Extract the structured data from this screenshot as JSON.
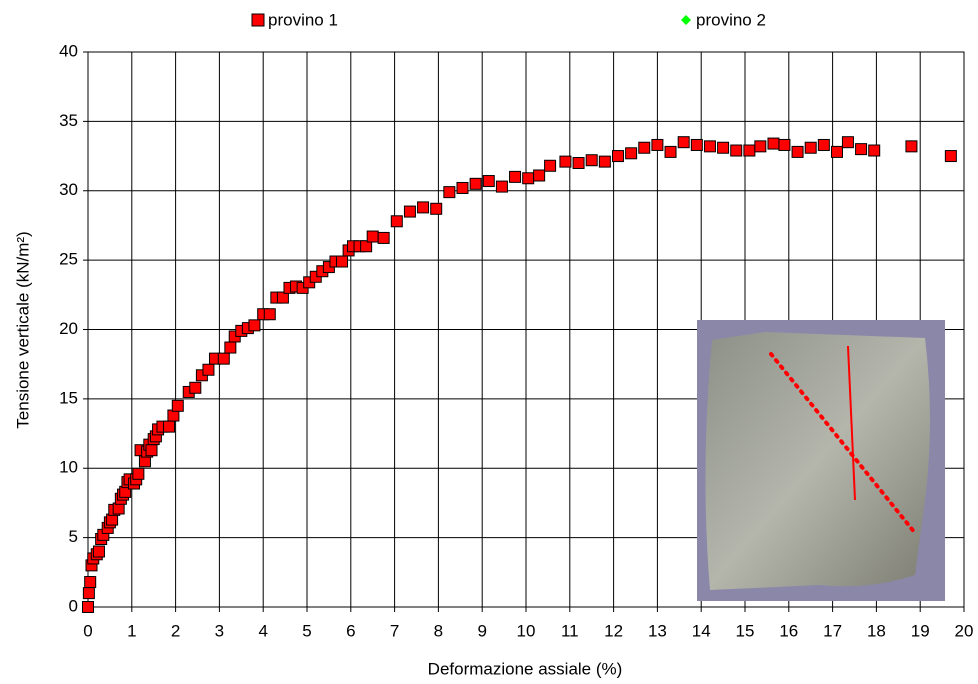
{
  "chart_data": {
    "type": "scatter",
    "xlabel": "Deformazione assiale (%)",
    "ylabel": "Tensione verticale (kN/m²)",
    "xlim": [
      0,
      20
    ],
    "xticks": [
      0,
      1,
      2,
      3,
      4,
      5,
      6,
      7,
      8,
      9,
      10,
      11,
      12,
      13,
      14,
      15,
      16,
      17,
      18,
      19,
      20
    ],
    "ylim": [
      0,
      40
    ],
    "yticks": [
      0,
      5,
      10,
      15,
      20,
      25,
      30,
      35,
      40
    ],
    "grid": true,
    "legend": "top",
    "series": [
      {
        "name": "provino 1",
        "color": "#ff0000",
        "marker": "square",
        "x": [
          0,
          0.02,
          0.05,
          0.08,
          0.12,
          0.2,
          0.25,
          0.3,
          0.35,
          0.45,
          0.5,
          0.55,
          0.6,
          0.7,
          0.75,
          0.8,
          0.85,
          0.9,
          0.95,
          1.05,
          1.1,
          1.15,
          1.2,
          1.3,
          1.35,
          1.4,
          1.45,
          1.5,
          1.55,
          1.6,
          1.7,
          1.85,
          1.95,
          2.05,
          2.3,
          2.45,
          2.6,
          2.75,
          2.9,
          3.1,
          3.25,
          3.35,
          3.5,
          3.65,
          3.8,
          4.0,
          4.15,
          4.3,
          4.45,
          4.6,
          4.75,
          4.9,
          5.05,
          5.2,
          5.35,
          5.5,
          5.65,
          5.8,
          5.95,
          6.05,
          6.2,
          6.35,
          6.5,
          6.75,
          7.05,
          7.35,
          7.65,
          7.95,
          8.25,
          8.55,
          8.85,
          9.15,
          9.45,
          9.75,
          10.05,
          10.3,
          10.55,
          10.9,
          11.2,
          11.5,
          11.8,
          12.1,
          12.4,
          12.7,
          13.0,
          13.3,
          13.6,
          13.9,
          14.2,
          14.5,
          14.8,
          15.1,
          15.35,
          15.65,
          15.9,
          16.2,
          16.5,
          16.8,
          17.1,
          17.35,
          17.65,
          17.95,
          18.8,
          19.7
        ],
        "values": [
          0,
          1,
          1.8,
          3,
          3.5,
          3.8,
          4,
          4.9,
          5.2,
          5.7,
          6.1,
          6.3,
          7,
          7.1,
          7.8,
          8.1,
          8.3,
          9,
          9.2,
          8.9,
          9.2,
          9.6,
          11.3,
          10.5,
          11.2,
          11.7,
          11.3,
          12.1,
          12.3,
          12.8,
          13,
          13,
          13.8,
          14.5,
          15.5,
          15.8,
          16.7,
          17.1,
          17.9,
          17.9,
          18.7,
          19.5,
          19.9,
          20.1,
          20.3,
          21.1,
          21.1,
          22.3,
          22.3,
          23,
          23.1,
          23,
          23.4,
          23.8,
          24.2,
          24.5,
          24.9,
          24.9,
          25.7,
          26,
          26,
          26,
          26.7,
          26.6,
          27.8,
          28.5,
          28.8,
          28.7,
          29.9,
          30.2,
          30.5,
          30.7,
          30.3,
          31,
          30.9,
          31.1,
          31.8,
          32.1,
          32,
          32.2,
          32.1,
          32.5,
          32.7,
          33.1,
          33.3,
          32.8,
          33.5,
          33.3,
          33.2,
          33.1,
          32.9,
          32.9,
          33.2,
          33.4,
          33.3,
          32.8,
          33.1,
          33.3,
          32.8,
          33.5,
          33,
          32.9,
          33.2,
          32.5
        ]
      },
      {
        "name": "provino 2",
        "color": "#00ff00",
        "marker": "diamond",
        "x": [],
        "values": []
      }
    ]
  }
}
